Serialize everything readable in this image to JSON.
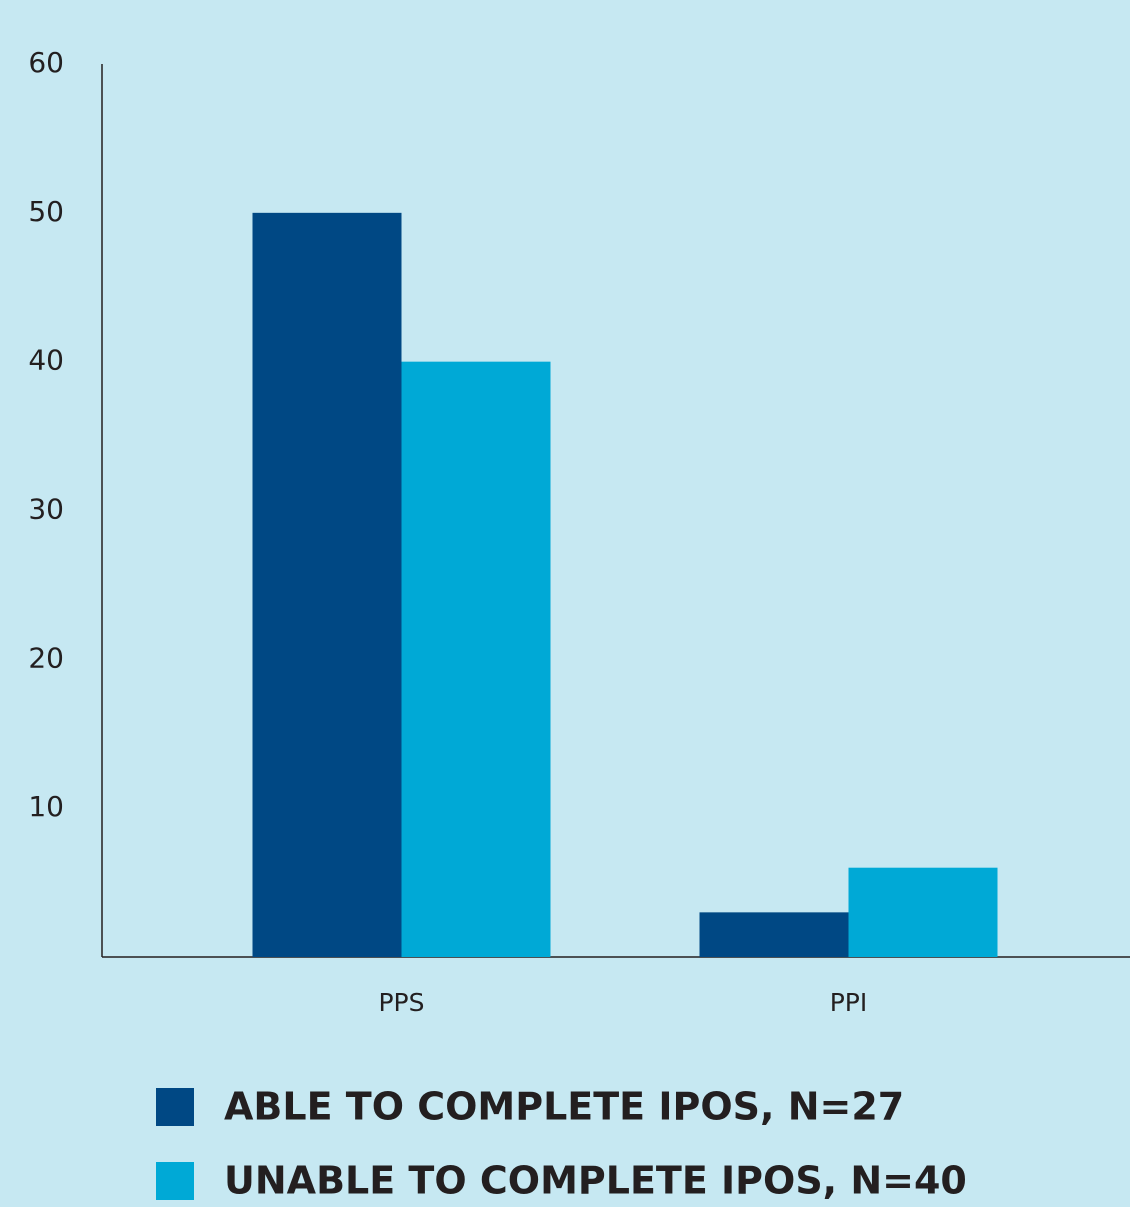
{
  "chart_data": {
    "type": "bar",
    "categories": [
      "PPS",
      "PPI"
    ],
    "series": [
      {
        "name": "ABLE TO COMPLETE IPOS, N=27",
        "color": "#004884",
        "values": [
          50,
          3
        ]
      },
      {
        "name": "UNABLE TO COMPLETE IPOS, N=40",
        "color": "#00a9d6",
        "values": [
          40,
          6
        ]
      }
    ],
    "ylim": [
      0,
      60
    ],
    "yticks": [
      10,
      20,
      30,
      40,
      50,
      60
    ],
    "grid": false,
    "legend": "bottom"
  }
}
